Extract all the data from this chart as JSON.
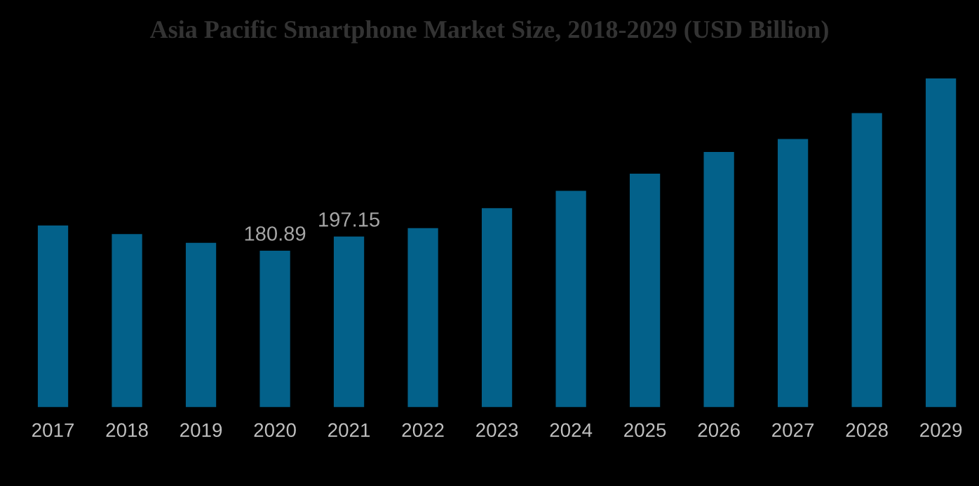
{
  "chart_data": {
    "type": "bar",
    "title": "Asia Pacific Smartphone Market Size, 2018-2029 (USD Billion)",
    "categories": [
      "2017",
      "2018",
      "2019",
      "2020",
      "2021",
      "2022",
      "2023",
      "2024",
      "2025",
      "2026",
      "2027",
      "2028",
      "2029"
    ],
    "values": [
      210,
      200,
      190,
      180.89,
      197.15,
      207,
      230,
      250,
      270,
      295,
      310,
      340,
      380
    ],
    "value_labels": [
      null,
      null,
      null,
      "180.89",
      "197.15",
      null,
      null,
      null,
      null,
      null,
      null,
      null,
      null
    ],
    "color": "#03618a"
  }
}
